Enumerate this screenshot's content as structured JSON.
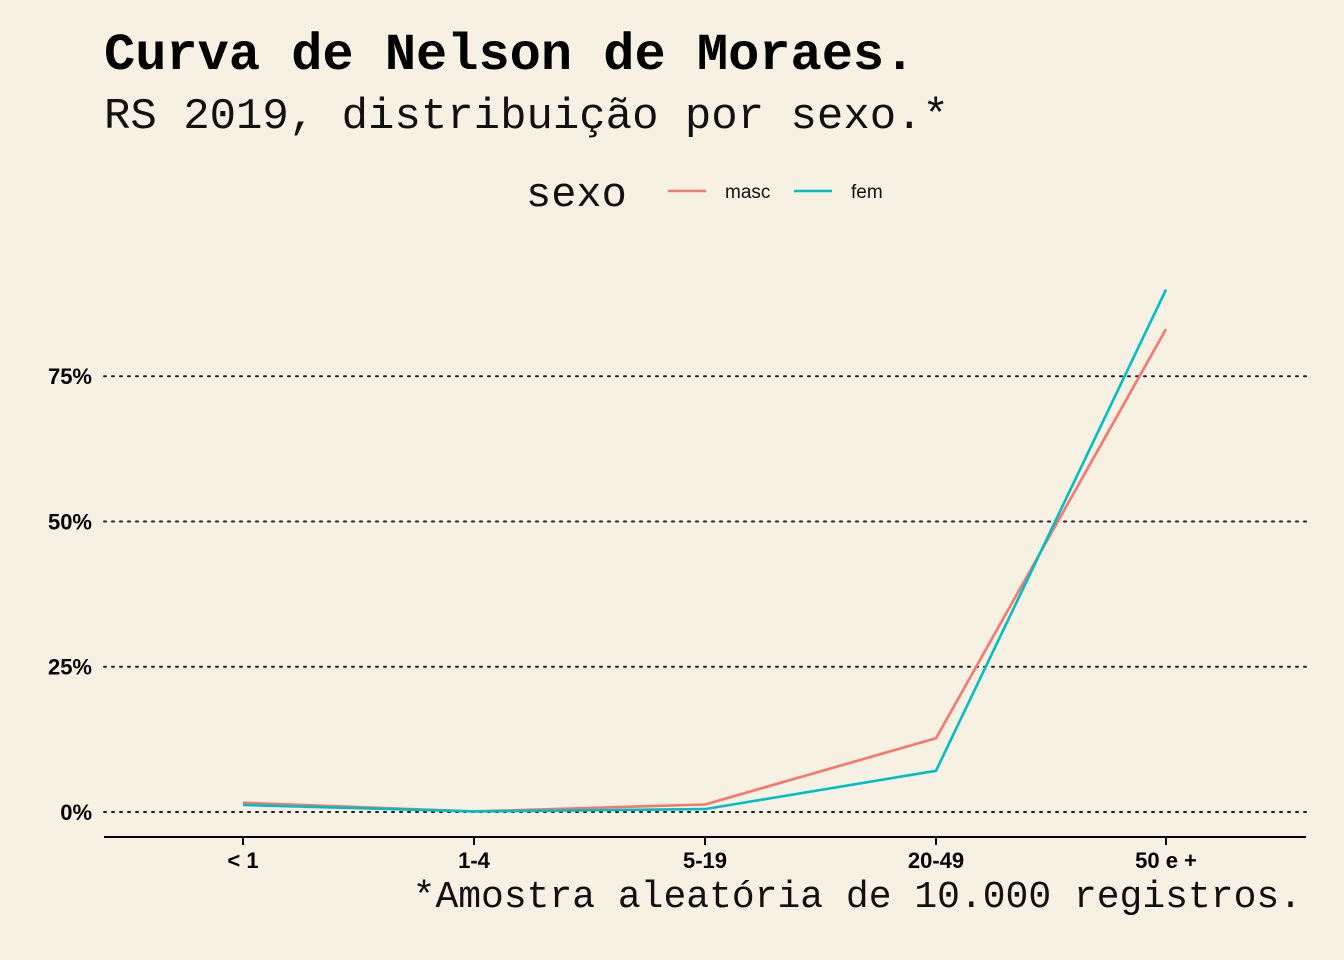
{
  "chart_data": {
    "type": "line",
    "title": "Curva de Nelson de Moraes.",
    "subtitle": "RS 2019, distribuição por sexo.*",
    "caption": "*Amostra aleatória de 10.000 registros.",
    "categories": [
      "< 1",
      "1-4",
      "5-19",
      "20-49",
      "50 e +"
    ],
    "series": [
      {
        "name": "masc",
        "values": [
          1.6,
          0.1,
          1.3,
          12.7,
          83.1
        ],
        "color": "#f8766d"
      },
      {
        "name": "fem",
        "values": [
          1.2,
          0.1,
          0.5,
          7.1,
          89.9
        ],
        "color": "#00bfc4"
      }
    ],
    "legend": {
      "title": "sexo",
      "position": "top"
    },
    "ylim": [
      -4.3,
      95
    ],
    "yticks": [
      0,
      25,
      50,
      75
    ],
    "ytick_labels": [
      "0%",
      "25%",
      "50%",
      "75%"
    ],
    "grid": {
      "horizontal": "dotted",
      "vertical": false
    },
    "xlabel": "",
    "ylabel": ""
  }
}
